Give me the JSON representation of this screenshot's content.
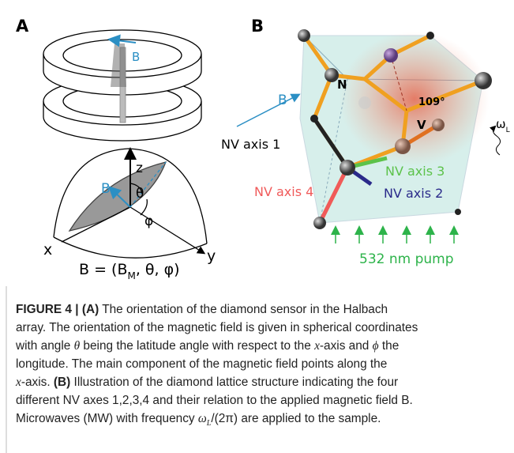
{
  "panel_a": {
    "label": "A",
    "ring_field": "B",
    "z_axis": "z",
    "field": "B",
    "theta": "θ",
    "phi": "φ",
    "x_axis": "x",
    "y_axis": "y",
    "equation": {
      "start": "B = (B",
      "sub": "M",
      "end": ", θ, φ)"
    }
  },
  "panel_b": {
    "label": "B",
    "field": "B",
    "nitrogen": "N",
    "angle": "109°",
    "vacancy": "V",
    "omega": {
      "symbol": "ω",
      "sub": "L"
    },
    "axes": [
      "NV axis 1",
      "NV axis 3",
      "NV axis 4",
      "NV axis 2"
    ],
    "pump": "532 nm pump"
  },
  "caption": {
    "lines": [
      [
        "FIGURE 4 | (A)",
        " The orientation of the diamond sensor in the Halbach"
      ],
      [
        "array. The orientation of the magnetic field is given in spherical coordinates"
      ],
      [
        "with angle ",
        "θ",
        " being the latitude angle with respect to the ",
        "x",
        "-axis and ",
        "ϕ",
        " the"
      ],
      [
        "longitude. The main component of the magnetic field points along the"
      ],
      [
        "x",
        "-axis. ",
        "(B)",
        " Illustration of the diamond lattice structure indicating the four"
      ],
      [
        "different NV axes 1,2,3,4 and their relation to the applied magnetic field B."
      ],
      [
        "Microwaves (MW) with frequency ",
        "ω",
        "L",
        "/(2π) are applied to the sample."
      ]
    ]
  }
}
